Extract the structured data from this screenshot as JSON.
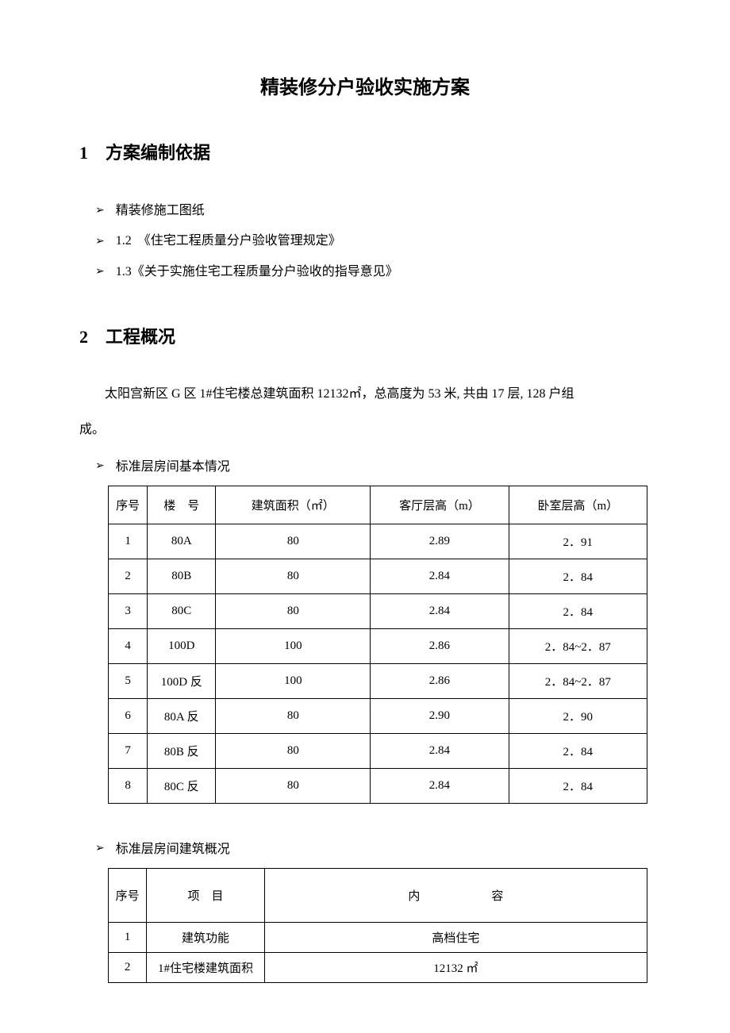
{
  "title": "精装修分户验收实施方案",
  "section1": {
    "heading": "1　方案编制依据",
    "items": [
      "精装修施工图纸",
      "1.2　《住宅工程质量分户验收管理规定》",
      "1.3《关于实施住宅工程质量分户验收的指导意见》"
    ]
  },
  "section2": {
    "heading": "2　工程概况",
    "paragraph_line1": "太阳宫新区 G 区 1#住宅楼总建筑面积 12132㎡，总高度为 53 米, 共由 17 层, 128 户组",
    "paragraph_line2": "成。",
    "sub1": "标准层房间基本情况",
    "sub2": "标准层房间建筑概况"
  },
  "table1": {
    "columns": [
      "序号",
      "楼　号",
      "建筑面积（㎡）",
      "客厅层高（m）",
      "卧室层高（m）"
    ],
    "rows": [
      [
        "1",
        "80A",
        "80",
        "2.89",
        "2．91"
      ],
      [
        "2",
        "80B",
        "80",
        "2.84",
        "2．84"
      ],
      [
        "3",
        "80C",
        "80",
        "2.84",
        "2．84"
      ],
      [
        "4",
        "100D",
        "100",
        "2.86",
        "2．84~2．87"
      ],
      [
        "5",
        "100D 反",
        "100",
        "2.86",
        "2．84~2．87"
      ],
      [
        "6",
        "80A 反",
        "80",
        "2.90",
        "2．90"
      ],
      [
        "7",
        "80B 反",
        "80",
        "2.84",
        "2．84"
      ],
      [
        "8",
        "80C 反",
        "80",
        "2.84",
        "2．84"
      ]
    ]
  },
  "table2": {
    "columns": [
      "序号",
      "项　目",
      "内容"
    ],
    "col3_display": "内　　　　　　容",
    "rows": [
      [
        "1",
        "建筑功能",
        "高档住宅"
      ],
      [
        "2",
        "1#住宅楼建筑面积",
        "12132 ㎡"
      ]
    ]
  },
  "style": {
    "background_color": "#ffffff",
    "text_color": "#000000",
    "border_color": "#000000",
    "title_fontsize": 24,
    "heading_fontsize": 22,
    "body_fontsize": 16,
    "table_fontsize": 15
  }
}
